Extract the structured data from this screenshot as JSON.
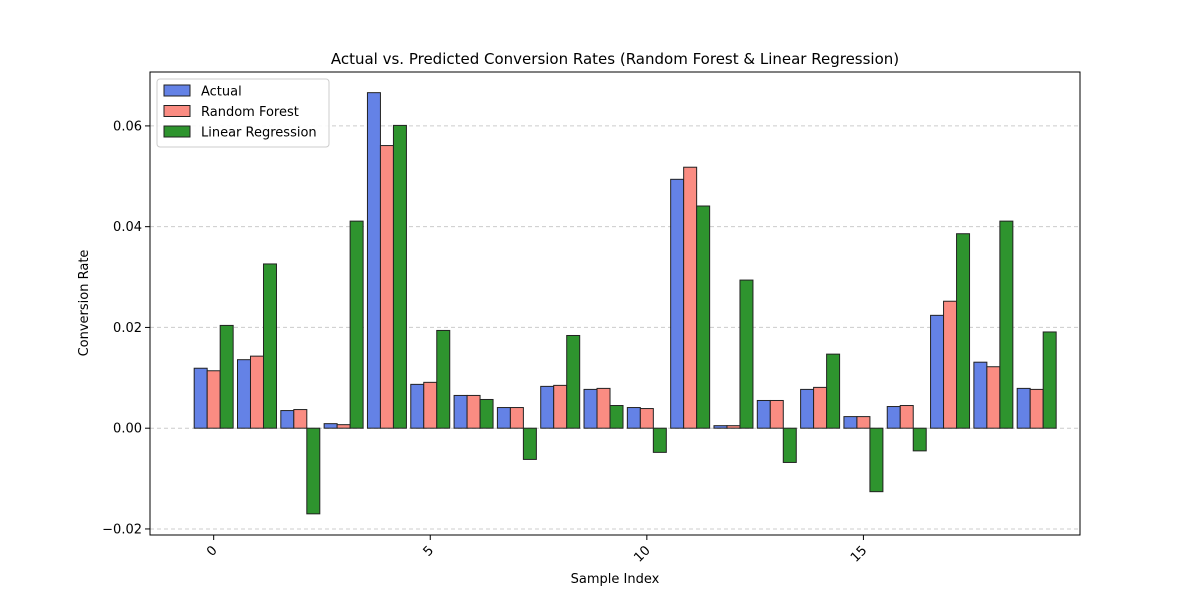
{
  "chart_data": {
    "type": "bar",
    "title": "Actual vs. Predicted Conversion Rates (Random Forest & Linear Regression)",
    "xlabel": "Sample Index",
    "ylabel": "Conversion Rate",
    "x": [
      0,
      1,
      2,
      3,
      4,
      5,
      6,
      7,
      8,
      9,
      10,
      11,
      12,
      13,
      14,
      15,
      16,
      17,
      18,
      19
    ],
    "xticks": [
      0,
      5,
      10,
      15
    ],
    "yticks": [
      -0.02,
      0.0,
      0.02,
      0.04,
      0.06
    ],
    "ytick_labels": [
      "−0.02",
      "0.00",
      "0.02",
      "0.04",
      "0.06"
    ],
    "xlim": [
      -1.47,
      20.0
    ],
    "ylim": [
      -0.0212,
      0.0707
    ],
    "grid": "y-dashed",
    "legend_position": "top-left",
    "series": [
      {
        "name": "Actual",
        "color": "#6482e6",
        "values": [
          0.0119,
          0.0136,
          0.0035,
          0.0009,
          0.0666,
          0.0087,
          0.0065,
          0.0041,
          0.0083,
          0.0077,
          0.0041,
          0.0494,
          0.0005,
          0.0055,
          0.0077,
          0.0023,
          0.0043,
          0.0224,
          0.0131,
          0.0079
        ]
      },
      {
        "name": "Random Forest",
        "color": "#fa8c82",
        "values": [
          0.0114,
          0.0143,
          0.0037,
          0.0007,
          0.0561,
          0.0091,
          0.0065,
          0.0041,
          0.0085,
          0.0079,
          0.0039,
          0.0518,
          0.0005,
          0.0055,
          0.0081,
          0.0023,
          0.0045,
          0.0252,
          0.0122,
          0.0077
        ]
      },
      {
        "name": "Linear Regression",
        "color": "#2e942e",
        "values": [
          0.0204,
          0.0326,
          -0.017,
          0.0411,
          0.0601,
          0.0194,
          0.0057,
          -0.0062,
          0.0184,
          0.0045,
          -0.0048,
          0.0441,
          0.0294,
          -0.0068,
          0.0147,
          -0.0126,
          -0.0045,
          0.0386,
          0.0411,
          0.0191
        ]
      }
    ]
  }
}
